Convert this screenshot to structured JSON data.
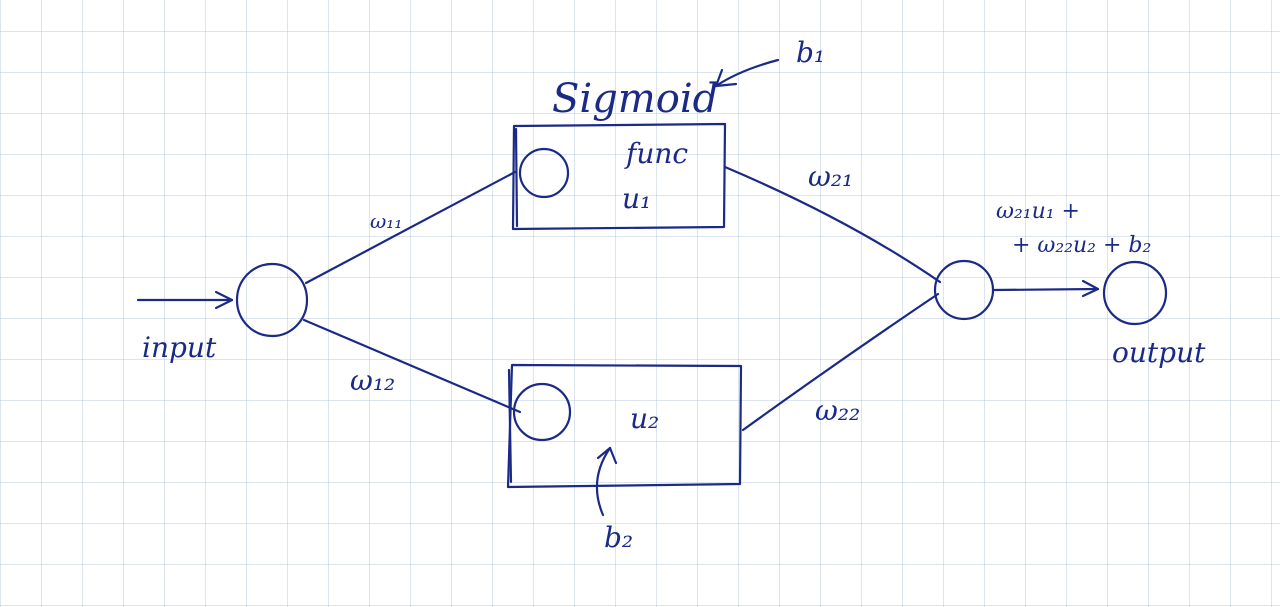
{
  "labels": {
    "sigmoid": "Sigmoid",
    "b1": "b₁",
    "func": "func",
    "u1": "u₁",
    "u2": "u₂",
    "b2": "b₂",
    "w11": "ω₁₁",
    "w12": "ω₁₂",
    "w21": "ω₂₁",
    "w22": "ω₂₂",
    "formula_line1": "ω₂₁u₁ +",
    "formula_line2": "+ ω₂₂u₂ + b₂",
    "input": "input",
    "output": "output"
  },
  "colors": {
    "ink": "#1a2a86",
    "grid": "#b8c9de",
    "paper": "#ffffff"
  }
}
